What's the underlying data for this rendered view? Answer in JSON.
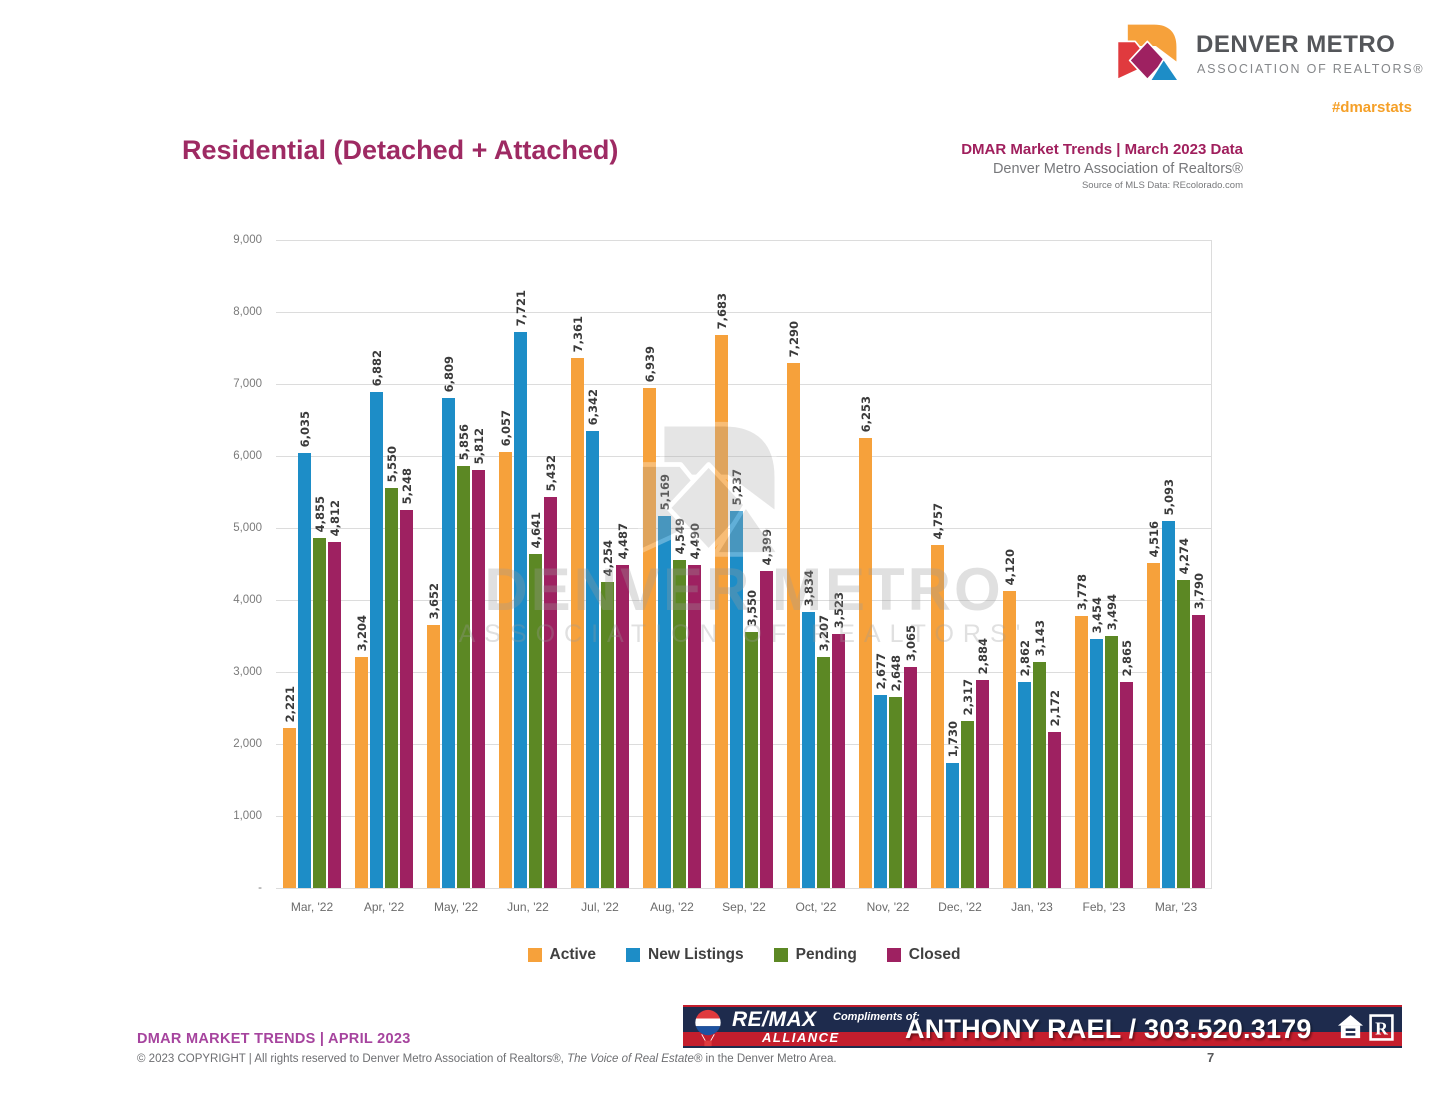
{
  "header": {
    "logo_line1": "DENVER METRO",
    "logo_line2": "ASSOCIATION OF REALTORS®",
    "hashtag": "#dmarstats",
    "title": "Residential (Detached + Attached)",
    "trends_line": "DMAR Market Trends | March 2023 Data",
    "org_line": "Denver Metro Association of Realtors®",
    "source_line": "Source of MLS Data: REcolorado.com"
  },
  "watermark": {
    "line1": "DENVER METRO",
    "line2": "ASSOCIATION OF REALTORS'"
  },
  "chart_data": {
    "type": "bar",
    "title": "Residential (Detached + Attached)",
    "categories": [
      "Mar, '22",
      "Apr, '22",
      "May, '22",
      "Jun, '22",
      "Jul, '22",
      "Aug, '22",
      "Sep, '22",
      "Oct, '22",
      "Nov, '22",
      "Dec, '22",
      "Jan, '23",
      "Feb, '23",
      "Mar, '23"
    ],
    "series": [
      {
        "name": "Active",
        "color": "#F6A13B",
        "values": [
          2221,
          3204,
          3652,
          6057,
          7361,
          6939,
          7683,
          7290,
          6253,
          4757,
          4120,
          3778,
          4516
        ]
      },
      {
        "name": "New Listings",
        "color": "#1D8DC7",
        "values": [
          6035,
          6882,
          6809,
          7721,
          6342,
          5169,
          5237,
          3834,
          2677,
          1730,
          2862,
          3454,
          5093
        ]
      },
      {
        "name": "Pending",
        "color": "#5C8824",
        "values": [
          4855,
          5550,
          5856,
          4641,
          4254,
          4549,
          3550,
          3207,
          2648,
          2317,
          3143,
          3494,
          4274
        ]
      },
      {
        "name": "Closed",
        "color": "#9E2161",
        "values": [
          4812,
          5248,
          5812,
          5432,
          4487,
          4490,
          4399,
          3523,
          3065,
          2884,
          2172,
          2865,
          3790
        ]
      }
    ],
    "xlabel": "",
    "ylabel": "",
    "ylim": [
      0,
      9000
    ],
    "ytick_step": 1000,
    "ytick_labels": [
      "9,000",
      "8,000",
      "7,000",
      "6,000",
      "5,000",
      "4,000",
      "3,000",
      "2,000",
      "1,000",
      "-"
    ],
    "grid": "horizontal",
    "legend_position": "bottom",
    "bar_value_labels": "rotated-90"
  },
  "footer": {
    "trends_line": "DMAR MARKET TRENDS | APRIL 2023",
    "copyright_prefix": "© 2023 COPYRIGHT | All rights reserved to Denver Metro Association of Realtors®, ",
    "copyright_italic": "The Voice of Real Estate®",
    "copyright_suffix": " in the Denver Metro Area.",
    "page_number": "7"
  },
  "banner": {
    "brand_top": "RE/MAX",
    "brand_bottom": "ALLIANCE",
    "compliments": "Compliments of:",
    "agent": "ANTHONY RAEL / 303.520.3179"
  }
}
